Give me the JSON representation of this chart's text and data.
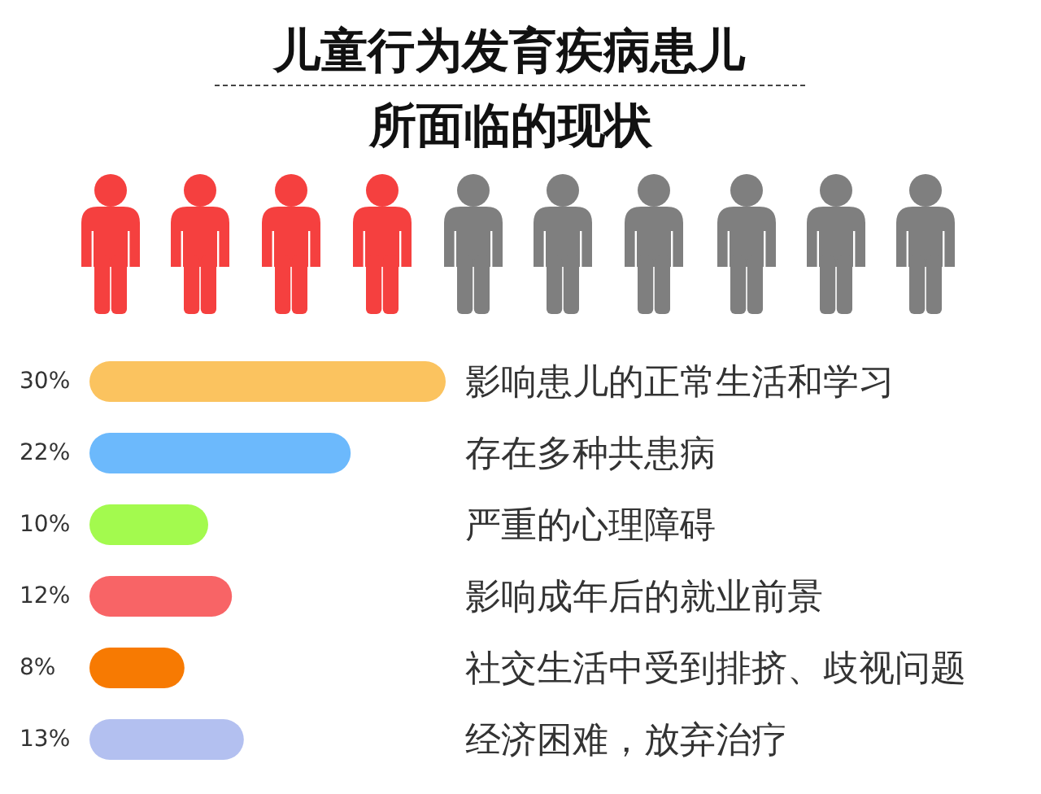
{
  "chart_data": {
    "type": "bar",
    "title": "儿童行为发育疾病患儿",
    "subtitle": "所面临的现状",
    "orientation": "horizontal",
    "tick_labels": "y",
    "categories": [
      "影响患儿的正常生活和学习",
      "存在多种共患病",
      "严重的心理障碍",
      "影响成年后的就业前景",
      "社交生活中受到排挤、歧视问题",
      "经济困难，放弃治疗"
    ],
    "values": [
      30,
      22,
      10,
      12,
      8,
      13
    ],
    "colors": [
      "#fbc35f",
      "#6cb9fc",
      "#a3fa4e",
      "#f86466",
      "#f77a02",
      "#b3c0f0"
    ],
    "value_labels": [
      "30%",
      "22%",
      "10%",
      "12%",
      "8%",
      "13%"
    ]
  }
}
